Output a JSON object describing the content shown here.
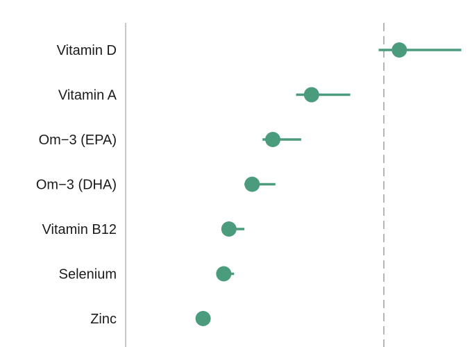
{
  "chart_data": {
    "type": "forest",
    "title": "",
    "xlabel": "",
    "ylabel": "",
    "xlim": [
      0,
      1.1
    ],
    "reference_line": 1.0,
    "categories": [
      "Vitamin D",
      "Vitamin A",
      "Om−3 (EPA)",
      "Om−3 (DHA)",
      "Vitamin B12",
      "Selenium",
      "Zinc"
    ],
    "estimates": [
      1.06,
      0.72,
      0.57,
      0.49,
      0.4,
      0.38,
      0.3
    ],
    "ci_lower": [
      0.98,
      0.66,
      0.53,
      0.46,
      0.38,
      0.36,
      0.29
    ],
    "ci_upper": [
      1.3,
      0.87,
      0.68,
      0.58,
      0.46,
      0.42,
      0.32
    ],
    "grid": false,
    "legend": "none"
  },
  "colors": {
    "marker": "#4a9c7c",
    "reference_line": "#b5b5b5",
    "axis": "#c8c8c8",
    "label": "#1a1a1a"
  }
}
